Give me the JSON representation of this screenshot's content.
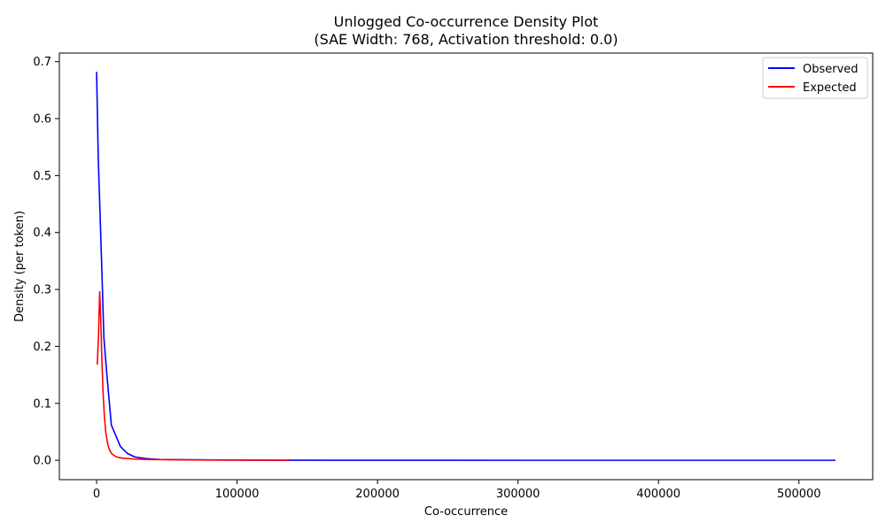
{
  "colors": {
    "observed": "#0000ff",
    "expected": "#ff0000"
  },
  "chart_data": {
    "type": "line",
    "title": "Unlogged Co-occurrence Density Plot",
    "subtitle": "(SAE Width: 768, Activation threshold: 0.0)",
    "xlabel": "Co-occurrence",
    "ylabel": "Density (per token)",
    "xlim": [
      -26500,
      552500
    ],
    "ylim": [
      -0.034,
      0.715
    ],
    "xticks": [
      0,
      100000,
      200000,
      300000,
      400000,
      500000
    ],
    "xtick_labels": [
      "0",
      "100000",
      "200000",
      "300000",
      "400000",
      "500000"
    ],
    "yticks": [
      0.0,
      0.1,
      0.2,
      0.3,
      0.4,
      0.5,
      0.6,
      0.7
    ],
    "ytick_labels": [
      "0.0",
      "0.1",
      "0.2",
      "0.3",
      "0.4",
      "0.5",
      "0.6",
      "0.7"
    ],
    "grid": false,
    "legend_position": "top-right",
    "series": [
      {
        "name": "Observed",
        "color": "#0000ff",
        "x": [
          0,
          1200,
          2500,
          3800,
          5200,
          7000,
          10500,
          17000,
          22000,
          27000,
          35000,
          45000,
          60000,
          80000,
          120000,
          200000,
          300000,
          400000,
          526000
        ],
        "y": [
          0.682,
          0.53,
          0.43,
          0.33,
          0.215,
          0.16,
          0.062,
          0.024,
          0.012,
          0.006,
          0.003,
          0.0015,
          0.001,
          0.0006,
          0.0003,
          0.0001,
          0.0,
          0.0,
          0.0
        ]
      },
      {
        "name": "Expected",
        "color": "#ff0000",
        "x": [
          500,
          1400,
          2200,
          3000,
          3800,
          4600,
          5600,
          6600,
          7800,
          9200,
          11000,
          14000,
          18000,
          25000,
          35000,
          50000,
          80000,
          110000,
          137000
        ],
        "y": [
          0.168,
          0.223,
          0.296,
          0.245,
          0.175,
          0.12,
          0.075,
          0.048,
          0.03,
          0.018,
          0.011,
          0.006,
          0.004,
          0.0025,
          0.0015,
          0.001,
          0.0005,
          0.0002,
          0.0
        ]
      }
    ]
  }
}
